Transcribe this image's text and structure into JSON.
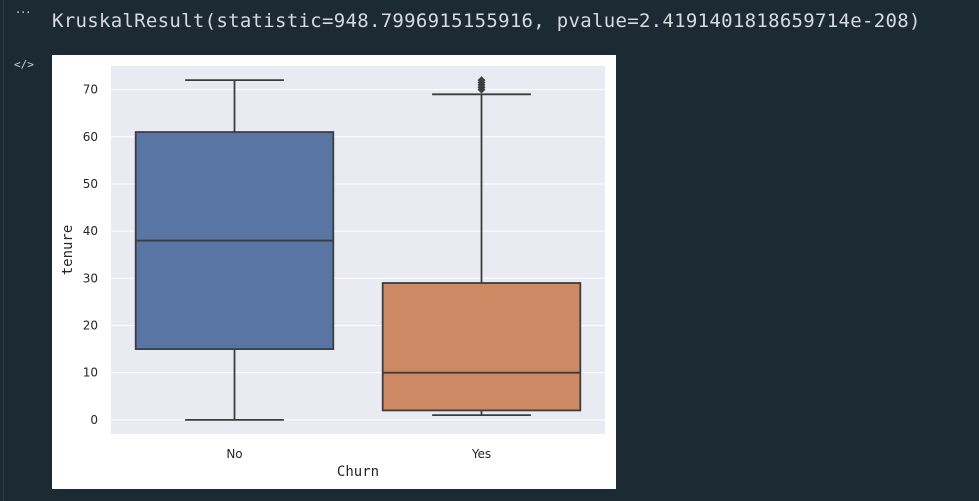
{
  "cell": {
    "output_menu_glyph": "···",
    "code_toggle_glyph": "</>",
    "result_text": "KruskalResult(statistic=948.7996915155916, pvalue=2.4191401818659714e-208)"
  },
  "chart_data": {
    "type": "box",
    "title": "",
    "xlabel": "Churn",
    "ylabel": "tenure",
    "ylim": [
      -3,
      75
    ],
    "yticks": [
      0,
      10,
      20,
      30,
      40,
      50,
      60,
      70
    ],
    "grid": true,
    "categories": [
      "No",
      "Yes"
    ],
    "boxes": [
      {
        "category": "No",
        "whisker_low": 0,
        "q1": 15,
        "median": 38,
        "q3": 61,
        "whisker_high": 72,
        "outliers": [],
        "color": "#5875a4"
      },
      {
        "category": "Yes",
        "whisker_low": 1,
        "q1": 2,
        "median": 10,
        "q3": 29,
        "whisker_high": 69,
        "outliers": [
          70,
          70.5,
          71,
          71.5,
          72
        ],
        "color": "#cc8963"
      }
    ],
    "colors": {
      "background": "#eaeaf2",
      "grid": "#ffffff",
      "edge": "#3d3d3d"
    }
  }
}
